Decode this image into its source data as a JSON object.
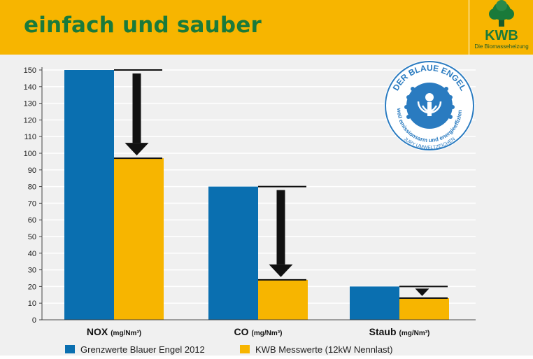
{
  "header": {
    "title": "einfach und sauber"
  },
  "logo": {
    "name": "KWB",
    "tagline": "Die Biomasseheizung"
  },
  "seal": {
    "title": "DER BLAUE ENGEL",
    "text_arc": "weil emissionsarm und energieeffizient",
    "jury": "JURY UMWELTZEICHEN"
  },
  "colors": {
    "header_bg": "#f7b500",
    "title_green": "#1a7a3a",
    "series_blue": "#0a6fb0",
    "series_yellow": "#f7b500",
    "seal_blue": "#2a7bc0"
  },
  "chart_data": {
    "type": "bar",
    "categories": [
      "NOX",
      "CO",
      "Staub"
    ],
    "category_units": [
      "(mg/Nm³)",
      "(mg/Nm³)",
      "(mg/Nm³)"
    ],
    "series": [
      {
        "name": "Grenzwerte Blauer Engel 2012",
        "values": [
          150,
          80,
          20
        ]
      },
      {
        "name": "KWB Messwerte (12kW Nennlast)",
        "values": [
          97,
          24,
          13
        ]
      }
    ],
    "y_ticks": [
      0,
      10,
      20,
      30,
      40,
      50,
      60,
      70,
      80,
      90,
      100,
      110,
      120,
      130,
      140,
      150
    ],
    "ylim": [
      0,
      150
    ],
    "grid": true,
    "legend_position": "bottom",
    "title": "",
    "xlabel": "",
    "ylabel": ""
  }
}
